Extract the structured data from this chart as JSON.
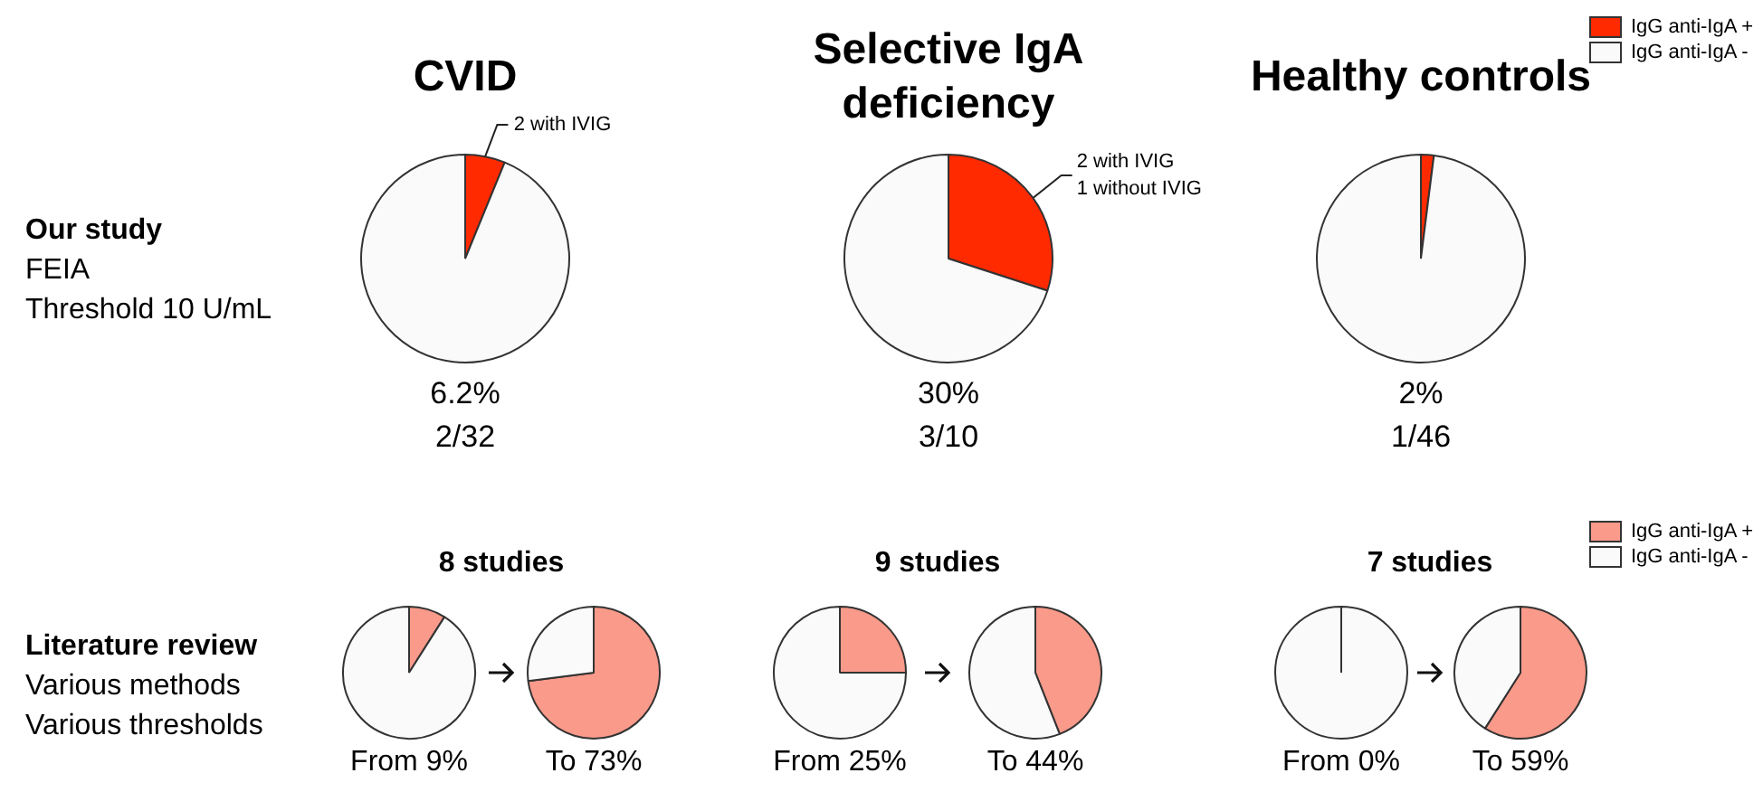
{
  "chart_data": [
    {
      "type": "other",
      "title": "Our study",
      "annotations": [
        "FEIA",
        "Threshold 10 U/mL"
      ]
    },
    {
      "type": "pie",
      "title": "CVID",
      "categories": [
        null,
        null
      ],
      "values": [
        6.2,
        93.8
      ],
      "colors": [
        "#ff2a00",
        "#fafafa"
      ],
      "annotations": [
        "6.2%",
        "2/32",
        {
          "text": "2 with IVIG"
        }
      ]
    },
    {
      "type": "pie",
      "title": "Selective IgA deficiency",
      "categories": [
        null,
        null
      ],
      "values": [
        30,
        70
      ],
      "colors": [
        "#ff2a00",
        "#fafafa"
      ],
      "annotations": [
        "30%",
        "3/10",
        {
          "text": "2 with IVIG"
        },
        {
          "text": "1 without IVIG"
        }
      ]
    },
    {
      "type": "pie",
      "title": "Healthy controls",
      "categories": [
        "IgG anti-IgA +",
        "IgG anti-IgA -"
      ],
      "values": [
        2,
        98
      ],
      "colors": [
        "#ff2a00",
        "#fafafa"
      ],
      "annotations": [
        "2%",
        "1/46"
      ],
      "legend": "top right"
    },
    {
      "type": "other",
      "title": "Literature review",
      "annotations": [
        "Various methods",
        "Various thresholds"
      ]
    },
    {
      "type": "pie",
      "title": "8 studies",
      "categories": [
        null,
        null
      ],
      "values": [
        9,
        91
      ],
      "colors": [
        "#f99a8a",
        "#fafafa"
      ],
      "annotations": [
        "From 9%"
      ]
    },
    {
      "type": "pie",
      "categories": [
        null,
        null
      ],
      "values": [
        73,
        27
      ],
      "colors": [
        "#f99a8a",
        "#fafafa"
      ],
      "annotations": [
        "To 73%"
      ]
    },
    {
      "type": "pie",
      "title": "9 studies",
      "categories": [
        null,
        null
      ],
      "values": [
        25,
        75
      ],
      "colors": [
        "#f99a8a",
        "#fafafa"
      ],
      "annotations": [
        "From 25%"
      ]
    },
    {
      "type": "pie",
      "categories": [
        null,
        null
      ],
      "values": [
        44,
        56
      ],
      "colors": [
        "#f99a8a",
        "#fafafa"
      ],
      "annotations": [
        "To 44%"
      ]
    },
    {
      "type": "pie",
      "title": "7 studies",
      "categories": [
        null,
        null
      ],
      "values": [
        0,
        100
      ],
      "colors": [
        "#f99a8a",
        "#fafafa"
      ],
      "annotations": [
        "From 0%"
      ]
    },
    {
      "type": "pie",
      "categories": [
        "IgG anti-IgA +",
        "IgG anti-IgA -"
      ],
      "values": [
        59,
        41
      ],
      "colors": [
        "#f99a8a",
        "#fafafa"
      ],
      "annotations": [
        "To 59%"
      ],
      "legend": "top right"
    }
  ]
}
